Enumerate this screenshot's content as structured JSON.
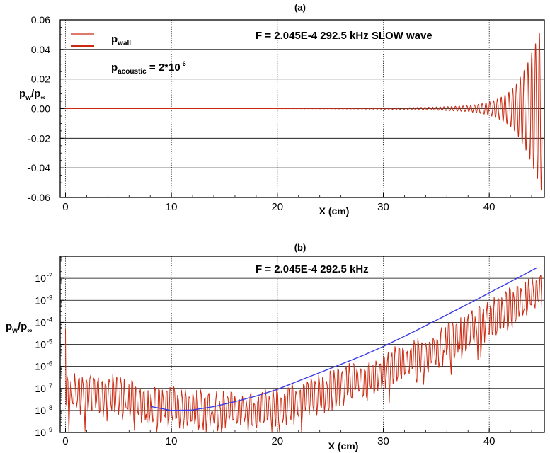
{
  "chart_data": [
    {
      "panel_label": "(a)",
      "type": "line",
      "xlabel": "X (cm)",
      "ylabel": "pw/p∞",
      "ylabel_main": "p",
      "ylabel_sub1": "w",
      "ylabel_slash": "/p",
      "ylabel_sub2": "∞",
      "xlim": [
        -0.5,
        45.2
      ],
      "ylim": [
        -0.06,
        0.06
      ],
      "x_ticks": [
        0,
        10,
        20,
        30,
        40
      ],
      "x_tick_labels": [
        "0",
        "10",
        "20",
        "30",
        "40"
      ],
      "y_ticks": [
        -0.06,
        -0.04,
        -0.02,
        0.0,
        0.02,
        0.04,
        0.06
      ],
      "y_tick_labels": [
        "-0.06",
        "-0.04",
        "-0.02",
        "0.00",
        "0.02",
        "0.04",
        "0.06"
      ],
      "grid": true,
      "legend": {
        "placement": "top-left",
        "entries": [
          {
            "main": "p",
            "sub": "wall",
            "color": "#cc2a10"
          }
        ]
      },
      "annotations": {
        "acoustic_main": "p",
        "acoustic_sub": "acoustic",
        "acoustic_rest": " = 2*10",
        "acoustic_sup": "-6",
        "frequency": "F = 2.045E-4  292.5 kHz   SLOW wave"
      },
      "series": [
        {
          "name": "pwall",
          "color": "#cc2a10",
          "style": "oscillating",
          "description_points": [
            {
              "x": 0,
              "amp": 0.0
            },
            {
              "x": 30,
              "amp": 0.0004
            },
            {
              "x": 38,
              "amp": 0.002
            },
            {
              "x": 40,
              "amp": 0.0045
            },
            {
              "x": 42,
              "amp": 0.012
            },
            {
              "x": 43,
              "amp": 0.022
            },
            {
              "x": 44,
              "amp": 0.038
            },
            {
              "x": 45,
              "amp": 0.058
            }
          ],
          "wavelength_cm": 0.36
        }
      ]
    },
    {
      "panel_label": "(b)",
      "type": "line",
      "log_y": true,
      "xlabel": "X (cm)",
      "ylabel": "pw/p∞",
      "ylabel_main": "p",
      "ylabel_sub1": "w",
      "ylabel_slash": "/p",
      "ylabel_sub2": "∞",
      "xlim": [
        -0.5,
        45.2
      ],
      "ylim": [
        1e-09,
        0.1
      ],
      "x_ticks": [
        0,
        10,
        20,
        30,
        40
      ],
      "x_tick_labels": [
        "0",
        "10",
        "20",
        "30",
        "40"
      ],
      "y_ticks": [
        1e-09,
        1e-08,
        1e-07,
        1e-06,
        1e-05,
        0.0001,
        0.001,
        0.01
      ],
      "y_tick_labels": [
        {
          "base": "10",
          "exp": "-9"
        },
        {
          "base": "10",
          "exp": "-8"
        },
        {
          "base": "10",
          "exp": "-7"
        },
        {
          "base": "10",
          "exp": "-6"
        },
        {
          "base": "10",
          "exp": "-5"
        },
        {
          "base": "10",
          "exp": "-4"
        },
        {
          "base": "10",
          "exp": "-3"
        },
        {
          "base": "10",
          "exp": "-2"
        }
      ],
      "grid": true,
      "annotations": {
        "frequency": "F = 2.045E-4  292.5 kHz"
      },
      "series": [
        {
          "name": "pwall",
          "color": "#cc2a10",
          "style": "oscillating-log",
          "envelope_points": [
            {
              "x": 0,
              "y": 1e-06
            },
            {
              "x": 4,
              "y": 1e-06
            },
            {
              "x": 8,
              "y": 3e-07
            },
            {
              "x": 12,
              "y": 2e-07
            },
            {
              "x": 18,
              "y": 1.5e-07
            },
            {
              "x": 22,
              "y": 4e-07
            },
            {
              "x": 26,
              "y": 2e-06
            },
            {
              "x": 30,
              "y": 1e-05
            },
            {
              "x": 35,
              "y": 0.0001
            },
            {
              "x": 40,
              "y": 0.0025
            },
            {
              "x": 45,
              "y": 0.05
            }
          ]
        },
        {
          "name": "envelope",
          "color": "#3a3ae6",
          "style": "smooth",
          "points": [
            {
              "x": 8.1,
              "y": 1.5e-08
            },
            {
              "x": 10,
              "y": 1e-08
            },
            {
              "x": 12,
              "y": 1.05e-08
            },
            {
              "x": 14,
              "y": 1.5e-08
            },
            {
              "x": 16,
              "y": 2.5e-08
            },
            {
              "x": 18,
              "y": 4.5e-08
            },
            {
              "x": 20,
              "y": 9e-08
            },
            {
              "x": 22,
              "y": 2.2e-07
            },
            {
              "x": 25,
              "y": 8e-07
            },
            {
              "x": 28,
              "y": 3e-06
            },
            {
              "x": 30,
              "y": 8e-06
            },
            {
              "x": 33,
              "y": 4e-05
            },
            {
              "x": 36,
              "y": 0.00022
            },
            {
              "x": 39,
              "y": 0.0012
            },
            {
              "x": 42,
              "y": 0.007
            },
            {
              "x": 44.5,
              "y": 0.03
            }
          ]
        }
      ]
    }
  ]
}
